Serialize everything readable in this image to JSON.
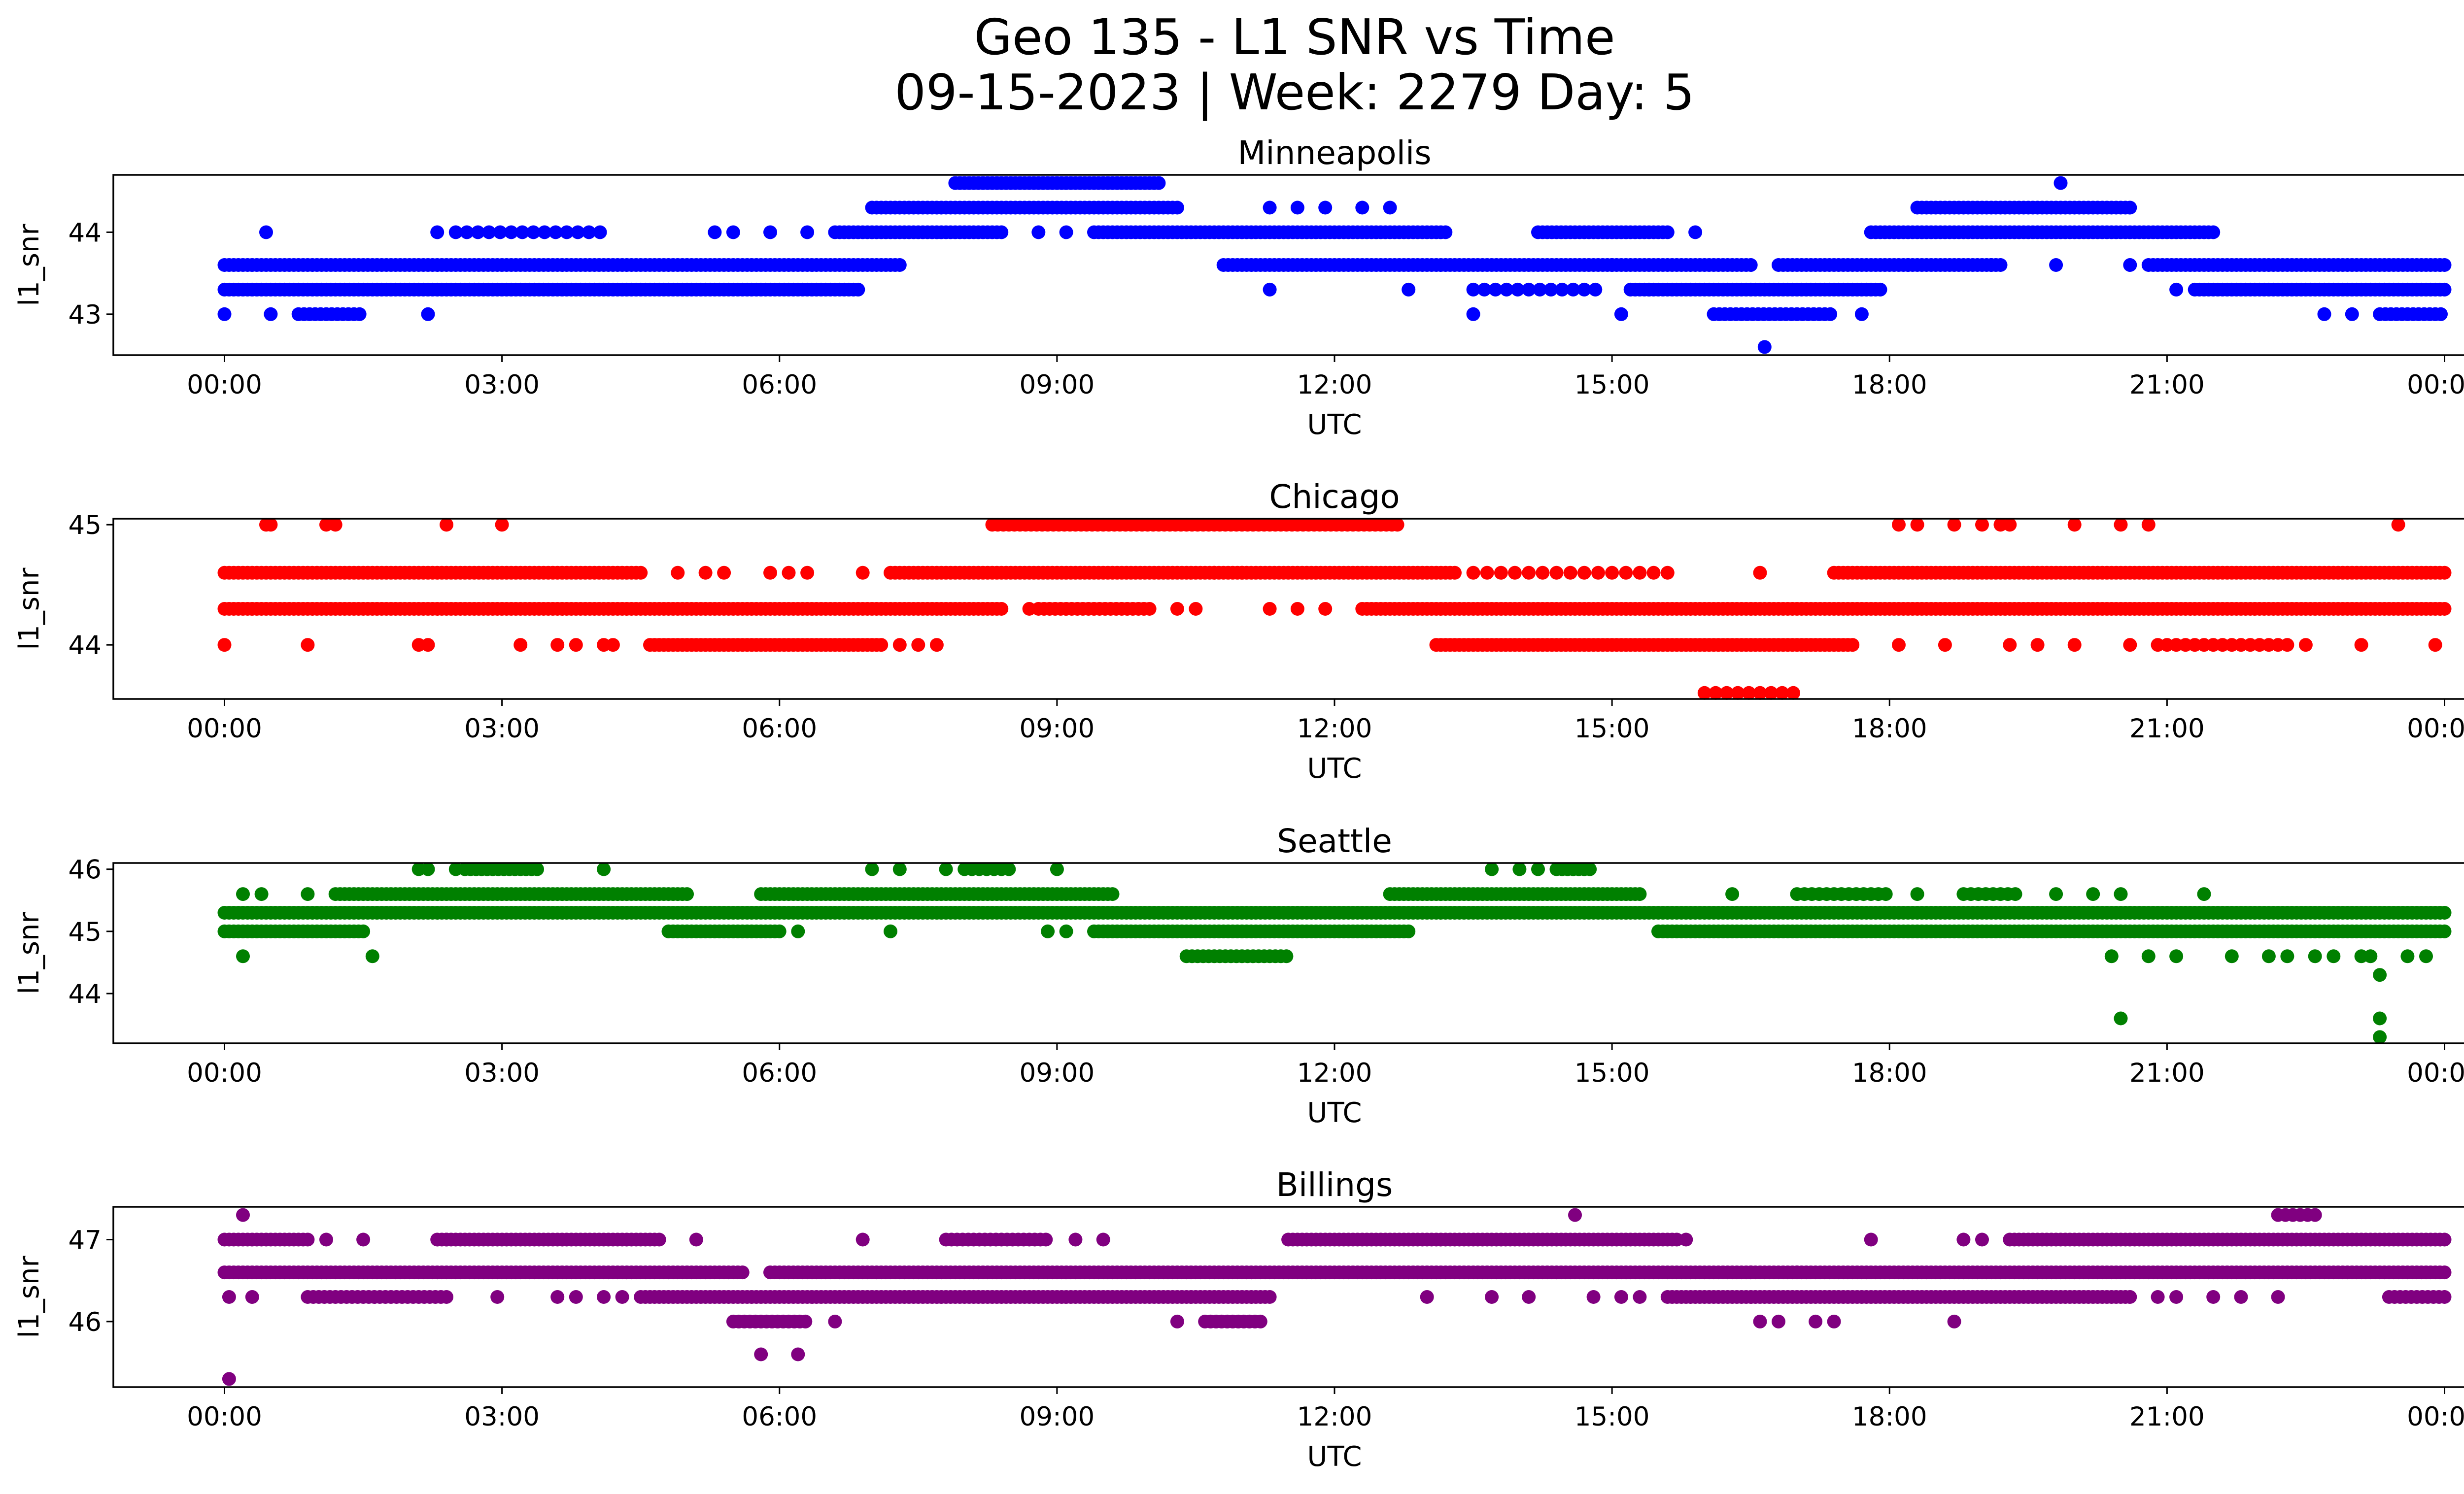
{
  "figure": {
    "title_line1": "Geo 135 - L1 SNR vs Time",
    "title_line2": "09-15-2023 | Week: 2279 Day: 5"
  },
  "chart_data": [
    {
      "type": "scatter",
      "title": "Minneapolis",
      "xlabel": "UTC",
      "ylabel": "l1_snr",
      "color": "#0000ff",
      "x_unit": "hours UTC",
      "xlim": [
        0,
        24
      ],
      "xticks": [
        "00:00",
        "03:00",
        "06:00",
        "09:00",
        "12:00",
        "15:00",
        "18:00",
        "21:00",
        "00:00"
      ],
      "ylim": [
        42.5,
        44.7
      ],
      "yticks": [
        43,
        44
      ],
      "segments": [
        {
          "y": 43.6,
          "x0": 0.0,
          "x1": 7.3,
          "step": 0.05
        },
        {
          "y": 43.3,
          "x0": 0.0,
          "x1": 6.85,
          "step": 0.05
        },
        {
          "y": 44.0,
          "x0": 6.6,
          "x1": 8.4,
          "step": 0.05
        },
        {
          "y": 44.3,
          "x0": 7.0,
          "x1": 10.3,
          "step": 0.05
        },
        {
          "y": 44.6,
          "x0": 7.9,
          "x1": 10.1,
          "step": 0.05
        },
        {
          "y": 44.0,
          "x0": 9.4,
          "x1": 13.2,
          "step": 0.05
        },
        {
          "y": 43.6,
          "x0": 10.8,
          "x1": 16.5,
          "step": 0.05
        },
        {
          "y": 44.0,
          "x0": 14.2,
          "x1": 15.6,
          "step": 0.05
        },
        {
          "y": 43.3,
          "x0": 15.2,
          "x1": 17.9,
          "step": 0.05
        },
        {
          "y": 43.6,
          "x0": 16.8,
          "x1": 19.2,
          "step": 0.05
        },
        {
          "y": 44.0,
          "x0": 17.8,
          "x1": 21.5,
          "step": 0.05
        },
        {
          "y": 44.3,
          "x0": 18.3,
          "x1": 20.6,
          "step": 0.05
        },
        {
          "y": 43.6,
          "x0": 20.8,
          "x1": 24.0,
          "step": 0.05
        },
        {
          "y": 43.3,
          "x0": 21.3,
          "x1": 24.0,
          "step": 0.05
        },
        {
          "y": 43.0,
          "x0": 23.3,
          "x1": 24.0,
          "step": 0.06
        },
        {
          "y": 43.0,
          "x0": 0.8,
          "x1": 1.5,
          "step": 0.06
        },
        {
          "y": 43.0,
          "x0": 16.1,
          "x1": 17.4,
          "step": 0.06
        },
        {
          "y": 44.0,
          "x0": 2.5,
          "x1": 4.1,
          "step": 0.12
        },
        {
          "y": 43.3,
          "x0": 13.5,
          "x1": 14.9,
          "step": 0.12
        }
      ],
      "points": [
        [
          0.0,
          43.0
        ],
        [
          0.5,
          43.0
        ],
        [
          0.45,
          44.0
        ],
        [
          2.2,
          43.0
        ],
        [
          2.3,
          44.0
        ],
        [
          5.3,
          44.0
        ],
        [
          5.5,
          44.0
        ],
        [
          5.9,
          44.0
        ],
        [
          6.3,
          44.0
        ],
        [
          8.8,
          44.0
        ],
        [
          9.1,
          44.0
        ],
        [
          11.3,
          44.3
        ],
        [
          11.6,
          44.3
        ],
        [
          11.9,
          44.3
        ],
        [
          12.3,
          44.3
        ],
        [
          12.6,
          44.3
        ],
        [
          11.3,
          43.3
        ],
        [
          12.8,
          43.3
        ],
        [
          13.5,
          43.0
        ],
        [
          15.1,
          43.0
        ],
        [
          15.4,
          43.3
        ],
        [
          15.9,
          44.0
        ],
        [
          16.65,
          42.6
        ],
        [
          19.85,
          44.6
        ],
        [
          17.7,
          43.0
        ],
        [
          18.2,
          43.6
        ],
        [
          19.1,
          43.6
        ],
        [
          19.8,
          43.6
        ],
        [
          20.6,
          43.6
        ],
        [
          21.1,
          43.3
        ],
        [
          22.7,
          43.0
        ],
        [
          23.0,
          43.0
        ],
        [
          15.0,
          43.6
        ]
      ]
    },
    {
      "type": "scatter",
      "title": "Chicago",
      "xlabel": "UTC",
      "ylabel": "l1_snr",
      "color": "#ff0000",
      "x_unit": "hours UTC",
      "xlim": [
        0,
        24
      ],
      "xticks": [
        "00:00",
        "03:00",
        "06:00",
        "09:00",
        "12:00",
        "15:00",
        "18:00",
        "21:00",
        "00:00"
      ],
      "ylim": [
        43.55,
        45.05
      ],
      "yticks": [
        44,
        45
      ],
      "segments": [
        {
          "y": 44.6,
          "x0": 0.0,
          "x1": 4.5,
          "step": 0.05
        },
        {
          "y": 44.3,
          "x0": 0.0,
          "x1": 8.4,
          "step": 0.05
        },
        {
          "y": 44.0,
          "x0": 4.6,
          "x1": 7.1,
          "step": 0.05
        },
        {
          "y": 44.6,
          "x0": 7.2,
          "x1": 13.3,
          "step": 0.05
        },
        {
          "y": 45.0,
          "x0": 8.3,
          "x1": 12.7,
          "step": 0.06
        },
        {
          "y": 44.3,
          "x0": 12.3,
          "x1": 24.0,
          "step": 0.05
        },
        {
          "y": 44.0,
          "x0": 13.1,
          "x1": 17.6,
          "step": 0.05
        },
        {
          "y": 44.6,
          "x0": 17.4,
          "x1": 24.0,
          "step": 0.05
        },
        {
          "y": 44.3,
          "x0": 8.8,
          "x1": 10.0,
          "step": 0.06
        },
        {
          "y": 43.6,
          "x0": 16.0,
          "x1": 17.0,
          "step": 0.12
        },
        {
          "y": 44.6,
          "x0": 13.5,
          "x1": 15.6,
          "step": 0.15
        },
        {
          "y": 44.0,
          "x0": 21.0,
          "x1": 22.3,
          "step": 0.1
        }
      ],
      "points": [
        [
          0.0,
          44.0
        ],
        [
          0.45,
          45.0
        ],
        [
          0.5,
          45.0
        ],
        [
          1.1,
          45.0
        ],
        [
          1.2,
          45.0
        ],
        [
          0.9,
          44.0
        ],
        [
          2.1,
          44.0
        ],
        [
          2.2,
          44.0
        ],
        [
          2.4,
          45.0
        ],
        [
          3.0,
          45.0
        ],
        [
          3.2,
          44.0
        ],
        [
          3.6,
          44.0
        ],
        [
          3.8,
          44.0
        ],
        [
          4.1,
          44.0
        ],
        [
          4.2,
          44.0
        ],
        [
          4.9,
          44.6
        ],
        [
          5.2,
          44.6
        ],
        [
          5.4,
          44.6
        ],
        [
          5.9,
          44.6
        ],
        [
          6.1,
          44.6
        ],
        [
          6.3,
          44.6
        ],
        [
          6.9,
          44.6
        ],
        [
          7.3,
          44.0
        ],
        [
          7.5,
          44.0
        ],
        [
          7.7,
          44.0
        ],
        [
          8.7,
          44.3
        ],
        [
          10.3,
          44.3
        ],
        [
          10.5,
          44.3
        ],
        [
          11.3,
          44.3
        ],
        [
          11.6,
          44.3
        ],
        [
          11.9,
          44.3
        ],
        [
          16.6,
          44.6
        ],
        [
          18.1,
          45.0
        ],
        [
          18.3,
          45.0
        ],
        [
          18.7,
          45.0
        ],
        [
          19.0,
          45.0
        ],
        [
          19.2,
          45.0
        ],
        [
          19.3,
          45.0
        ],
        [
          20.0,
          45.0
        ],
        [
          20.5,
          45.0
        ],
        [
          20.8,
          45.0
        ],
        [
          23.5,
          45.0
        ],
        [
          18.1,
          44.0
        ],
        [
          18.6,
          44.0
        ],
        [
          19.3,
          44.0
        ],
        [
          19.6,
          44.0
        ],
        [
          20.0,
          44.0
        ],
        [
          20.6,
          44.0
        ],
        [
          20.9,
          44.0
        ],
        [
          22.5,
          44.0
        ],
        [
          23.1,
          44.0
        ],
        [
          23.9,
          44.0
        ],
        [
          10.7,
          44.6
        ],
        [
          11.0,
          44.6
        ]
      ]
    },
    {
      "type": "scatter",
      "title": "Seattle",
      "xlabel": "UTC",
      "ylabel": "l1_snr",
      "color": "#008000",
      "x_unit": "hours UTC",
      "xlim": [
        0,
        24
      ],
      "xticks": [
        "00:00",
        "03:00",
        "06:00",
        "09:00",
        "12:00",
        "15:00",
        "18:00",
        "21:00",
        "00:00"
      ],
      "ylim": [
        43.2,
        46.1
      ],
      "yticks": [
        44,
        45,
        46
      ],
      "segments": [
        {
          "y": 45.3,
          "x0": 0.0,
          "x1": 24.0,
          "step": 0.05
        },
        {
          "y": 45.0,
          "x0": 0.0,
          "x1": 1.5,
          "step": 0.05
        },
        {
          "y": 45.6,
          "x0": 1.2,
          "x1": 5.0,
          "step": 0.05
        },
        {
          "y": 45.0,
          "x0": 4.8,
          "x1": 6.0,
          "step": 0.05
        },
        {
          "y": 45.6,
          "x0": 5.8,
          "x1": 9.6,
          "step": 0.05
        },
        {
          "y": 45.0,
          "x0": 9.4,
          "x1": 12.8,
          "step": 0.05
        },
        {
          "y": 44.6,
          "x0": 10.4,
          "x1": 11.5,
          "step": 0.06
        },
        {
          "y": 45.6,
          "x0": 12.6,
          "x1": 15.3,
          "step": 0.05
        },
        {
          "y": 46.0,
          "x0": 14.4,
          "x1": 14.8,
          "step": 0.06
        },
        {
          "y": 45.0,
          "x0": 15.5,
          "x1": 24.0,
          "step": 0.05
        },
        {
          "y": 45.6,
          "x0": 17.0,
          "x1": 18.0,
          "step": 0.08
        },
        {
          "y": 46.0,
          "x0": 2.6,
          "x1": 3.4,
          "step": 0.06
        },
        {
          "y": 46.0,
          "x0": 8.0,
          "x1": 8.5,
          "step": 0.08
        },
        {
          "y": 45.6,
          "x0": 18.8,
          "x1": 19.4,
          "step": 0.08
        }
      ],
      "points": [
        [
          0.2,
          44.6
        ],
        [
          0.2,
          45.6
        ],
        [
          0.4,
          45.6
        ],
        [
          0.9,
          45.6
        ],
        [
          1.6,
          44.6
        ],
        [
          2.1,
          46.0
        ],
        [
          2.2,
          46.0
        ],
        [
          2.5,
          46.0
        ],
        [
          4.1,
          46.0
        ],
        [
          6.2,
          45.0
        ],
        [
          7.0,
          46.0
        ],
        [
          7.3,
          46.0
        ],
        [
          7.2,
          45.0
        ],
        [
          7.8,
          46.0
        ],
        [
          9.0,
          46.0
        ],
        [
          9.1,
          45.0
        ],
        [
          8.9,
          45.0
        ],
        [
          13.7,
          46.0
        ],
        [
          14.0,
          46.0
        ],
        [
          14.2,
          46.0
        ],
        [
          16.3,
          45.6
        ],
        [
          18.3,
          45.6
        ],
        [
          20.5,
          43.6
        ],
        [
          20.4,
          44.6
        ],
        [
          20.5,
          45.6
        ],
        [
          20.8,
          44.6
        ],
        [
          21.1,
          44.6
        ],
        [
          21.4,
          45.6
        ],
        [
          21.7,
          44.6
        ],
        [
          22.1,
          44.6
        ],
        [
          22.3,
          44.6
        ],
        [
          22.6,
          44.6
        ],
        [
          22.8,
          44.6
        ],
        [
          23.1,
          44.6
        ],
        [
          23.2,
          44.6
        ],
        [
          23.3,
          44.3
        ],
        [
          23.3,
          43.6
        ],
        [
          23.3,
          43.3
        ],
        [
          23.6,
          44.6
        ],
        [
          23.8,
          44.6
        ],
        [
          19.8,
          45.6
        ],
        [
          20.2,
          45.6
        ]
      ]
    },
    {
      "type": "scatter",
      "title": "Billings",
      "xlabel": "UTC",
      "ylabel": "l1_snr",
      "color": "#800080",
      "x_unit": "hours UTC",
      "xlim": [
        0,
        24
      ],
      "xticks": [
        "00:00",
        "03:00",
        "06:00",
        "09:00",
        "12:00",
        "15:00",
        "18:00",
        "21:00",
        "00:00"
      ],
      "ylim": [
        45.2,
        47.4
      ],
      "yticks": [
        46,
        47
      ],
      "segments": [
        {
          "y": 46.6,
          "x0": 0.0,
          "x1": 5.6,
          "step": 0.05
        },
        {
          "y": 47.0,
          "x0": 0.0,
          "x1": 0.9,
          "step": 0.05
        },
        {
          "y": 46.3,
          "x0": 0.9,
          "x1": 2.4,
          "step": 0.06
        },
        {
          "y": 47.0,
          "x0": 2.3,
          "x1": 4.7,
          "step": 0.05
        },
        {
          "y": 46.3,
          "x0": 4.5,
          "x1": 11.3,
          "step": 0.05
        },
        {
          "y": 46.0,
          "x0": 5.5,
          "x1": 6.3,
          "step": 0.06
        },
        {
          "y": 46.6,
          "x0": 5.9,
          "x1": 24.0,
          "step": 0.05
        },
        {
          "y": 47.0,
          "x0": 7.8,
          "x1": 8.9,
          "step": 0.06
        },
        {
          "y": 46.0,
          "x0": 10.6,
          "x1": 11.2,
          "step": 0.06
        },
        {
          "y": 47.0,
          "x0": 11.5,
          "x1": 15.7,
          "step": 0.05
        },
        {
          "y": 46.3,
          "x0": 15.6,
          "x1": 20.6,
          "step": 0.05
        },
        {
          "y": 47.0,
          "x0": 19.3,
          "x1": 24.0,
          "step": 0.05
        },
        {
          "y": 47.3,
          "x0": 22.2,
          "x1": 22.6,
          "step": 0.08
        },
        {
          "y": 46.3,
          "x0": 23.4,
          "x1": 24.0,
          "step": 0.06
        }
      ],
      "points": [
        [
          0.05,
          45.3
        ],
        [
          0.2,
          47.3
        ],
        [
          0.05,
          46.3
        ],
        [
          0.3,
          46.3
        ],
        [
          1.1,
          47.0
        ],
        [
          1.5,
          47.0
        ],
        [
          2.4,
          47.0
        ],
        [
          2.95,
          46.3
        ],
        [
          3.6,
          46.3
        ],
        [
          3.8,
          46.3
        ],
        [
          4.1,
          46.3
        ],
        [
          4.3,
          46.3
        ],
        [
          5.1,
          47.0
        ],
        [
          5.8,
          45.6
        ],
        [
          6.2,
          45.6
        ],
        [
          6.6,
          46.0
        ],
        [
          6.9,
          47.0
        ],
        [
          9.2,
          47.0
        ],
        [
          9.5,
          47.0
        ],
        [
          10.3,
          46.0
        ],
        [
          13.0,
          46.3
        ],
        [
          13.7,
          46.3
        ],
        [
          14.1,
          46.3
        ],
        [
          14.6,
          47.3
        ],
        [
          14.8,
          46.3
        ],
        [
          15.1,
          46.3
        ],
        [
          15.3,
          46.3
        ],
        [
          15.8,
          47.0
        ],
        [
          16.6,
          46.0
        ],
        [
          16.8,
          46.0
        ],
        [
          17.2,
          46.0
        ],
        [
          17.4,
          46.0
        ],
        [
          17.8,
          47.0
        ],
        [
          18.7,
          46.0
        ],
        [
          18.8,
          47.0
        ],
        [
          19.0,
          47.0
        ],
        [
          20.9,
          46.3
        ],
        [
          21.1,
          46.3
        ],
        [
          21.5,
          46.3
        ],
        [
          21.8,
          46.3
        ],
        [
          22.2,
          46.3
        ],
        [
          16.5,
          46.6
        ],
        [
          17.0,
          46.6
        ]
      ]
    }
  ]
}
